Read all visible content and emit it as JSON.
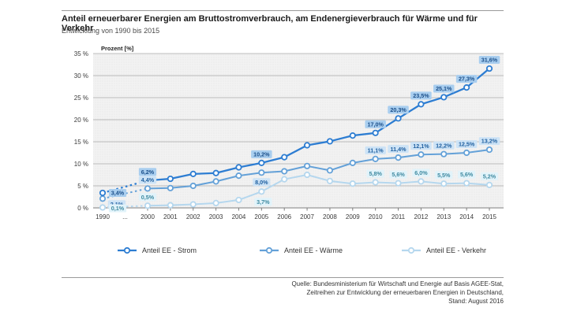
{
  "header": {
    "title": "Anteil erneuerbarer Energien am Bruttostromverbrauch, am Endenergieverbrauch für Wärme und für Verkehr",
    "subtitle": "Entwicklung von 1990 bis 2015"
  },
  "chart_data": {
    "type": "line",
    "title": "Anteil erneuerbarer Energien am Bruttostromverbrauch, am Endenergieverbrauch für Wärme und für Verkehr",
    "subtitle": "Entwicklung von 1990 bis 2015",
    "axis_label": "Prozent [%]",
    "ylabel": "Prozent [%]",
    "ylim": [
      0,
      35
    ],
    "grid": true,
    "legend_position": "bottom",
    "y_ticks": [
      "35 %",
      "30 %",
      "25 %",
      "20 %",
      "15 %",
      "10 %",
      "5 %",
      "0 %"
    ],
    "x_tick_labels": [
      "1990",
      "...",
      "2000",
      "2001",
      "2002",
      "2003",
      "2004",
      "2005",
      "2006",
      "2007",
      "2008",
      "2009",
      "2010",
      "2011",
      "2012",
      "2013",
      "2014",
      "2015"
    ],
    "years": [
      1990,
      2000,
      2001,
      2002,
      2003,
      2004,
      2005,
      2006,
      2007,
      2008,
      2009,
      2010,
      2011,
      2012,
      2013,
      2014,
      2015
    ],
    "dashed_gap_years": [
      1990,
      2000
    ],
    "series": [
      {
        "id": "strom",
        "name": "Anteil EE - Strom",
        "color": "#2d7dd2",
        "label_bg": "#a9ceef",
        "label_color": "#1b4f8a",
        "values": [
          3.4,
          6.2,
          6.6,
          7.7,
          7.9,
          9.2,
          10.2,
          11.5,
          14.2,
          15.1,
          16.4,
          17.0,
          20.3,
          23.5,
          25.1,
          27.3,
          31.6
        ],
        "point_labels": {
          "1990": "3,4%",
          "2000": "6,2%",
          "2005": "10,2%",
          "2010": "17,0%",
          "2011": "20,3%",
          "2012": "23,5%",
          "2013": "25,1%",
          "2014": "27,3%",
          "2015": "31,6%"
        }
      },
      {
        "id": "waerme",
        "name": "Anteil EE - Wärme",
        "color": "#64a1d8",
        "label_bg": "#cde3f6",
        "label_color": "#2060a0",
        "values": [
          2.1,
          4.4,
          4.5,
          5.0,
          6.0,
          7.3,
          8.0,
          8.3,
          9.5,
          8.5,
          10.2,
          11.1,
          11.4,
          12.1,
          12.2,
          12.5,
          13.2
        ],
        "point_labels": {
          "1990": "2,1%",
          "2000": "4,4%",
          "2005": "8,0%",
          "2010": "11,1%",
          "2011": "11,4%",
          "2012": "12,1%",
          "2013": "12,2%",
          "2014": "12,5%",
          "2015": "13,2%"
        }
      },
      {
        "id": "verkehr",
        "name": "Anteil EE - Verkehr",
        "color": "#b5d7ee",
        "label_bg": "#e1f3fa",
        "label_color": "#3e89a0",
        "values": [
          0.1,
          0.5,
          0.6,
          0.8,
          1.1,
          1.8,
          3.7,
          6.5,
          7.5,
          6.1,
          5.5,
          5.8,
          5.6,
          6.0,
          5.5,
          5.6,
          5.2
        ],
        "point_labels": {
          "1990": "0,1%",
          "2000": "0,5%",
          "2005": "3,7%",
          "2010": "5,8%",
          "2011": "5,6%",
          "2012": "6,0%",
          "2013": "5,5%",
          "2014": "5,6%",
          "2015": "5,2%"
        }
      }
    ]
  },
  "footer": {
    "source_line1": "Quelle: Bundesministerium für Wirtschaft und Energie auf Basis AGEE-Stat,",
    "source_line2": "Zeitreihen zur Entwicklung der erneuerbaren Energien in Deutschland,",
    "source_line3": "Stand: August 2016"
  }
}
